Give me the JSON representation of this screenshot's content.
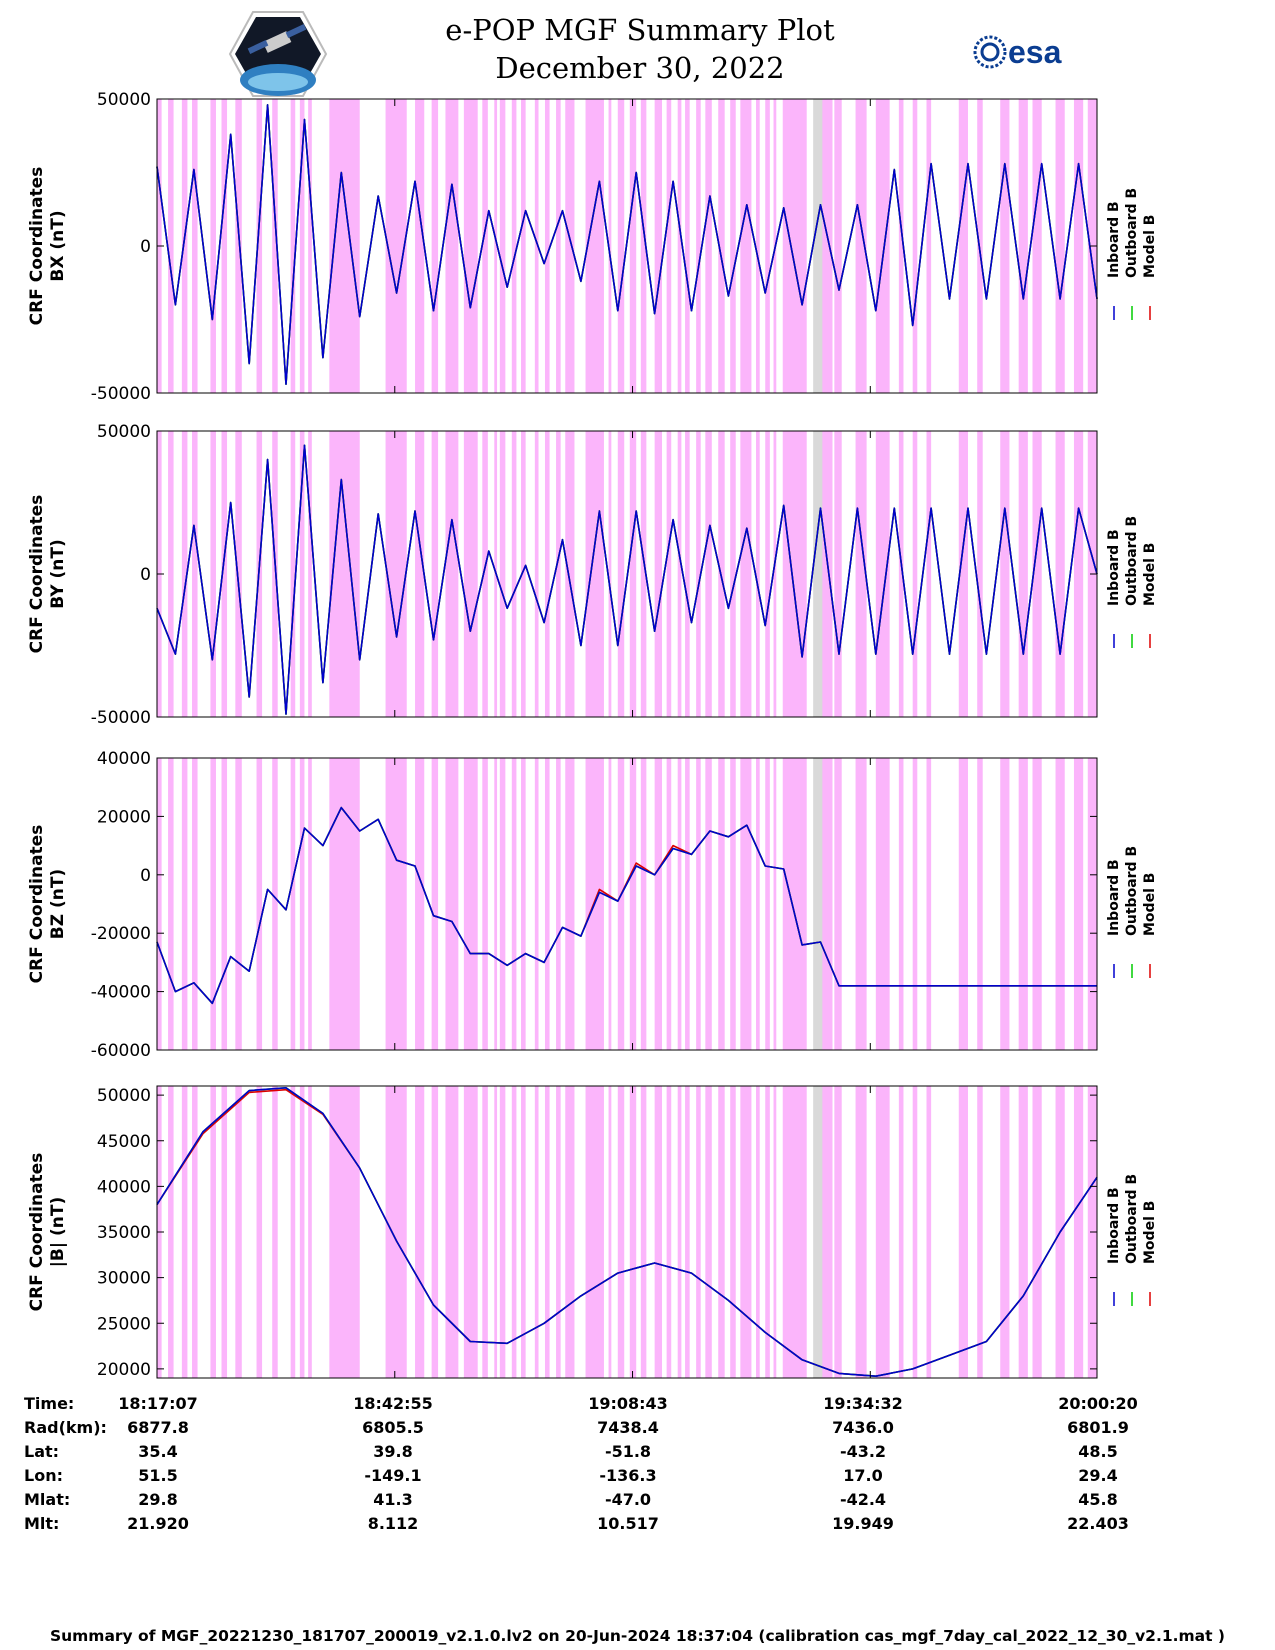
{
  "header": {
    "title": "e-POP MGF Summary Plot",
    "date": "December 30, 2022",
    "left_logo": "cassiope-mission-logo",
    "right_logo_text": "esa"
  },
  "colors": {
    "inboard": "#0000cc",
    "outboard": "#00cc00",
    "model": "#dd0000",
    "flag_pink": "#fbb5fb",
    "flag_gray": "#d9d9d9"
  },
  "chart_data": [
    {
      "type": "line",
      "ylabel_line1": "CRF Coordinates",
      "ylabel_line2": "BX (nT)",
      "ylim": [
        -50000,
        50000
      ],
      "yticks": [
        "50000",
        "0",
        "-50000"
      ],
      "legend": [
        "Inboard B",
        "Outboard B",
        "Model B"
      ],
      "x_minutes": [
        0,
        2,
        4,
        6,
        8,
        10,
        12,
        14,
        16,
        18,
        20,
        22,
        24,
        26,
        28,
        30,
        32,
        34,
        36,
        38,
        40,
        42,
        44,
        46,
        48,
        50,
        52,
        54,
        56,
        58,
        60,
        62,
        64,
        66,
        68,
        70,
        72,
        74,
        76,
        78,
        80,
        82,
        84,
        86,
        88,
        90,
        92,
        94,
        96,
        98,
        100,
        102
      ],
      "series": [
        {
          "name": "Inboard B",
          "values": [
            27000,
            -20000,
            26000,
            -25000,
            38000,
            -40000,
            48000,
            -47000,
            43000,
            -38000,
            25000,
            -24000,
            17000,
            -16000,
            22000,
            -22000,
            21000,
            -21000,
            12000,
            -14000,
            12000,
            -6000,
            12000,
            -12000,
            22000,
            -22000,
            25000,
            -23000,
            22000,
            -22000,
            17000,
            -17000,
            14000,
            -16000,
            13000,
            -20000,
            14000,
            -15000,
            14000,
            -22000,
            26000,
            -27000,
            28000,
            -18000,
            28000,
            -18000,
            28000,
            -18000,
            28000,
            -18000,
            28000,
            -18000
          ]
        },
        {
          "name": "Outboard B",
          "values": [
            27000,
            -20000,
            26000,
            -25000,
            38000,
            -40000,
            48000,
            -47000,
            43000,
            -38000,
            25000,
            -24000,
            17000,
            -16000,
            22000,
            -22000,
            21000,
            -21000,
            12000,
            -14000,
            12000,
            -6000,
            12000,
            -12000,
            22000,
            -22000,
            25000,
            -23000,
            22000,
            -22000,
            17000,
            -17000,
            14000,
            -16000,
            13000,
            -20000,
            14000,
            -15000,
            14000,
            -22000,
            26000,
            -27000,
            28000,
            -18000,
            28000,
            -18000,
            28000,
            -18000,
            28000,
            -18000,
            28000,
            -18000
          ]
        },
        {
          "name": "Model B",
          "values": [
            27000,
            -20000,
            26000,
            -25000,
            38000,
            -40000,
            48000,
            -47000,
            43000,
            -38000,
            25000,
            -24000,
            17000,
            -16000,
            22000,
            -22000,
            21000,
            -21000,
            12000,
            -14000,
            12000,
            -6000,
            12000,
            -12000,
            22000,
            -22000,
            25000,
            -23000,
            22000,
            -22000,
            17000,
            -17000,
            14000,
            -16000,
            13000,
            -20000,
            14000,
            -15000,
            14000,
            -22000,
            26000,
            -27000,
            28000,
            -18000,
            28000,
            -18000,
            28000,
            -18000,
            28000,
            -18000,
            28000,
            -18000
          ]
        }
      ]
    },
    {
      "type": "line",
      "ylabel_line1": "CRF Coordinates",
      "ylabel_line2": "BY (nT)",
      "ylim": [
        -50000,
        50000
      ],
      "yticks": [
        "50000",
        "0",
        "-50000"
      ],
      "legend": [
        "Inboard B",
        "Outboard B",
        "Model B"
      ],
      "x_minutes": [
        0,
        2,
        4,
        6,
        8,
        10,
        12,
        14,
        16,
        18,
        20,
        22,
        24,
        26,
        28,
        30,
        32,
        34,
        36,
        38,
        40,
        42,
        44,
        46,
        48,
        50,
        52,
        54,
        56,
        58,
        60,
        62,
        64,
        66,
        68,
        70,
        72,
        74,
        76,
        78,
        80,
        82,
        84,
        86,
        88,
        90,
        92,
        94,
        96,
        98,
        100,
        102
      ],
      "series": [
        {
          "name": "Inboard B",
          "values": [
            -12000,
            -28000,
            17000,
            -30000,
            25000,
            -43000,
            40000,
            -49000,
            45000,
            -38000,
            33000,
            -30000,
            21000,
            -22000,
            22000,
            -23000,
            19000,
            -20000,
            8000,
            -12000,
            3000,
            -17000,
            12000,
            -25000,
            22000,
            -25000,
            22000,
            -20000,
            19000,
            -17000,
            17000,
            -12000,
            16000,
            -18000,
            24000,
            -29000,
            23000,
            -28000,
            23000,
            -28000,
            23000,
            -28000,
            23000,
            -28000,
            23000,
            -28000,
            23000,
            -28000,
            23000,
            -28000,
            23000,
            0
          ]
        },
        {
          "name": "Outboard B",
          "values": [
            -12000,
            -28000,
            17000,
            -30000,
            25000,
            -43000,
            40000,
            -49000,
            45000,
            -38000,
            33000,
            -30000,
            21000,
            -22000,
            22000,
            -23000,
            19000,
            -20000,
            8000,
            -12000,
            3000,
            -17000,
            12000,
            -25000,
            22000,
            -25000,
            22000,
            -20000,
            19000,
            -17000,
            17000,
            -12000,
            16000,
            -18000,
            24000,
            -29000,
            23000,
            -28000,
            23000,
            -28000,
            23000,
            -28000,
            23000,
            -28000,
            23000,
            -28000,
            23000,
            -28000,
            23000,
            -28000,
            23000,
            0
          ]
        },
        {
          "name": "Model B",
          "values": [
            -12000,
            -28000,
            17000,
            -30000,
            25000,
            -43000,
            40000,
            -49000,
            45000,
            -38000,
            33000,
            -30000,
            21000,
            -22000,
            22000,
            -23000,
            19000,
            -20000,
            8000,
            -12000,
            3000,
            -17000,
            12000,
            -25000,
            22000,
            -25000,
            22000,
            -20000,
            19000,
            -17000,
            17000,
            -12000,
            16000,
            -18000,
            24000,
            -29000,
            23000,
            -28000,
            23000,
            -28000,
            23000,
            -28000,
            23000,
            -28000,
            23000,
            -28000,
            23000,
            -28000,
            23000,
            -28000,
            23000,
            0
          ]
        }
      ]
    },
    {
      "type": "line",
      "ylabel_line1": "CRF Coordinates",
      "ylabel_line2": "BZ (nT)",
      "ylim": [
        -60000,
        40000
      ],
      "yticks": [
        "40000",
        "20000",
        "0",
        "-20000",
        "-40000",
        "-60000"
      ],
      "legend": [
        "Inboard B",
        "Outboard B",
        "Model B"
      ],
      "x_minutes": [
        0,
        2,
        4,
        6,
        8,
        10,
        12,
        14,
        16,
        18,
        20,
        22,
        24,
        26,
        28,
        30,
        32,
        34,
        36,
        38,
        40,
        42,
        44,
        46,
        48,
        50,
        52,
        54,
        56,
        58,
        60,
        62,
        64,
        66,
        68,
        70,
        72,
        74,
        76,
        78,
        80,
        82,
        84,
        86,
        88,
        90,
        92,
        94,
        96,
        98,
        100,
        102
      ],
      "series": [
        {
          "name": "Inboard B",
          "values": [
            -23000,
            -40000,
            -37000,
            -44000,
            -28000,
            -33000,
            -5000,
            -12000,
            16000,
            10000,
            23000,
            15000,
            19000,
            5000,
            3000,
            -14000,
            -16000,
            -27000,
            -27000,
            -31000,
            -27000,
            -30000,
            -18000,
            -21000,
            -6000,
            -9000,
            3000,
            0,
            9000,
            7000,
            15000,
            13000,
            17000,
            3000,
            2000,
            -24000,
            -23000,
            -38000,
            -38000,
            -38000,
            -38000,
            -38000,
            -38000,
            -38000,
            -38000,
            -38000,
            -38000,
            -38000,
            -38000,
            -38000,
            -38000,
            -38000
          ]
        },
        {
          "name": "Outboard B",
          "values": [
            -23000,
            -40000,
            -37000,
            -44000,
            -28000,
            -33000,
            -5000,
            -12000,
            16000,
            10000,
            23000,
            15000,
            19000,
            5000,
            3000,
            -14000,
            -16000,
            -27000,
            -27000,
            -31000,
            -27000,
            -30000,
            -18000,
            -21000,
            -6000,
            -9000,
            3000,
            0,
            9000,
            7000,
            15000,
            13000,
            17000,
            3000,
            2000,
            -24000,
            -23000,
            -38000,
            -38000,
            -38000,
            -38000,
            -38000,
            -38000,
            -38000,
            -38000,
            -38000,
            -38000,
            -38000,
            -38000,
            -38000,
            -38000,
            -38000
          ]
        },
        {
          "name": "Model B",
          "values": [
            -23000,
            -40000,
            -37000,
            -44000,
            -28000,
            -33000,
            -5000,
            -12000,
            16000,
            10000,
            23000,
            15000,
            19000,
            5000,
            3000,
            -14000,
            -16000,
            -27000,
            -27000,
            -31000,
            -27000,
            -30000,
            -18000,
            -21000,
            -5000,
            -9000,
            4000,
            0,
            10000,
            7000,
            15000,
            13000,
            17000,
            3000,
            2000,
            -24000,
            -23000,
            -38000,
            -38000,
            -38000,
            -38000,
            -38000,
            -38000,
            -38000,
            -38000,
            -38000,
            -38000,
            -38000,
            -38000,
            -38000,
            -38000,
            -38000
          ]
        }
      ]
    },
    {
      "type": "line",
      "ylabel_line1": "CRF Coordinates",
      "ylabel_line2": "|B| (nT)",
      "ylim": [
        19000,
        51000
      ],
      "yticks": [
        "50000",
        "45000",
        "40000",
        "35000",
        "30000",
        "25000",
        "20000"
      ],
      "legend": [
        "Inboard B",
        "Outboard B",
        "Model B"
      ],
      "x_minutes": [
        0,
        5,
        10,
        14,
        18,
        22,
        26,
        30,
        34,
        38,
        42,
        46,
        50,
        54,
        58,
        62,
        66,
        70,
        74,
        78,
        82,
        86,
        90,
        94,
        98,
        102
      ],
      "series": [
        {
          "name": "Inboard B",
          "values": [
            38000,
            46000,
            50500,
            50800,
            48000,
            42000,
            34000,
            27000,
            23000,
            22800,
            25000,
            28000,
            30500,
            31600,
            30500,
            27500,
            24000,
            21000,
            19500,
            19200,
            20000,
            21500,
            23000,
            28000,
            35000,
            41000
          ]
        },
        {
          "name": "Outboard B",
          "values": [
            38000,
            46000,
            50500,
            50800,
            48000,
            42000,
            34000,
            27000,
            23000,
            22800,
            25000,
            28000,
            30500,
            31600,
            30500,
            27500,
            24000,
            21000,
            19500,
            19200,
            20000,
            21500,
            23000,
            28000,
            35000,
            41000
          ]
        },
        {
          "name": "Model B",
          "values": [
            38000,
            45800,
            50300,
            50600,
            47900,
            42000,
            34000,
            27000,
            23000,
            22800,
            25000,
            28000,
            30500,
            31600,
            30500,
            27500,
            24000,
            21000,
            19500,
            19200,
            20000,
            21500,
            23000,
            28000,
            35000,
            41000
          ]
        }
      ]
    }
  ],
  "flags": {
    "pink_intervals_minutes": [
      [
        0,
        0.5
      ],
      [
        1.2,
        1.8
      ],
      [
        2.7,
        3.3
      ],
      [
        3.8,
        4.4
      ],
      [
        5.8,
        6.4
      ],
      [
        7.0,
        7.6
      ],
      [
        8.5,
        9.2
      ],
      [
        10.8,
        11.4
      ],
      [
        12.5,
        13.1
      ],
      [
        14.5,
        15.0
      ],
      [
        15.5,
        16.0
      ],
      [
        16.4,
        16.8
      ],
      [
        18.7,
        22.0
      ],
      [
        24.8,
        27.1
      ],
      [
        28.0,
        29.0
      ],
      [
        29.8,
        30.5
      ],
      [
        31.3,
        32.7
      ],
      [
        33.3,
        34.8
      ],
      [
        35.3,
        35.9
      ],
      [
        36.6,
        36.9
      ],
      [
        37.2,
        37.8
      ],
      [
        38.5,
        39.0
      ],
      [
        39.5,
        40.0
      ],
      [
        41.0,
        41.4
      ],
      [
        42.1,
        42.6
      ],
      [
        43.3,
        43.8
      ],
      [
        44.3,
        45.3
      ],
      [
        46.5,
        48.5
      ],
      [
        49.0,
        49.3
      ],
      [
        50.0,
        50.7
      ],
      [
        51.3,
        52.0
      ],
      [
        52.5,
        53.1
      ],
      [
        54.0,
        54.8
      ],
      [
        55.3,
        55.8
      ],
      [
        56.5,
        56.9
      ],
      [
        57.3,
        57.8
      ],
      [
        58.5,
        59.0
      ],
      [
        59.5,
        60.2
      ],
      [
        60.9,
        61.6
      ],
      [
        62.2,
        62.8
      ],
      [
        63.3,
        64.5
      ],
      [
        65.0,
        65.4
      ],
      [
        66.0,
        66.5
      ],
      [
        66.9,
        67.2
      ],
      [
        67.9,
        70.5
      ],
      [
        71.5,
        73.3
      ],
      [
        73.5,
        74.3
      ],
      [
        75.8,
        77.0
      ],
      [
        78.0,
        79.5
      ],
      [
        80.5,
        81.0
      ],
      [
        82.0,
        82.5
      ],
      [
        83.5,
        84.0
      ],
      [
        87.0,
        88.0
      ],
      [
        89.0,
        89.6
      ],
      [
        91.5,
        92.5
      ],
      [
        93.5,
        94.5
      ],
      [
        95.0,
        96.0
      ],
      [
        97.5,
        98.5
      ],
      [
        99.5,
        100.5
      ],
      [
        101.0,
        102.0
      ]
    ],
    "gray_intervals_minutes": [
      [
        71.2,
        72.2
      ]
    ]
  },
  "ephemeris": {
    "labels": [
      "Time:",
      "Rad(km):",
      "Lat:",
      "Lon:",
      "Mlat:",
      "Mlt:"
    ],
    "columns": [
      [
        "18:17:07",
        "6877.8",
        "35.4",
        "51.5",
        "29.8",
        "21.920"
      ],
      [
        "18:42:55",
        "6805.5",
        "39.8",
        "-149.1",
        "41.3",
        "8.112"
      ],
      [
        "19:08:43",
        "7438.4",
        "-51.8",
        "-136.3",
        "-47.0",
        "10.517"
      ],
      [
        "19:34:32",
        "7436.0",
        "-43.2",
        "17.0",
        "-42.4",
        "19.949"
      ],
      [
        "20:00:20",
        "6801.9",
        "48.5",
        "29.4",
        "45.8",
        "22.403"
      ]
    ]
  },
  "footer": "Summary of MGF_20221230_181707_200019_v2.1.0.lv2 on 20-Jun-2024 18:37:04 (calibration cas_mgf_7day_cal_2022_12_30_v2.1.mat )"
}
